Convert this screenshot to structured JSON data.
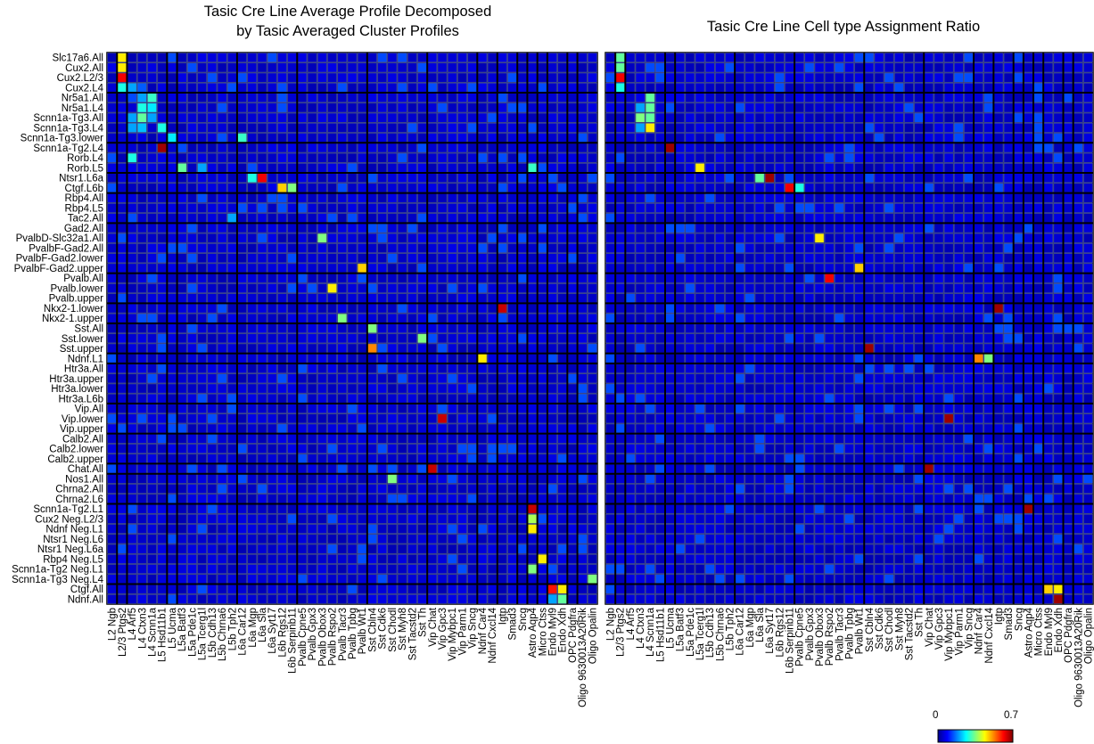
{
  "chart_data": [
    {
      "type": "heatmap",
      "title": "Tasic Cre Line Average Profile Decomposed",
      "subtitle": "by Tasic Averaged Cluster Profiles",
      "rows": [
        "Slc17a6.All",
        "Cux2.All",
        "Cux2.L2/3",
        "Cux2.L4",
        "Nr5a1.All",
        "Nr5a1.L4",
        "Scnn1a-Tg3.All",
        "Scnn1a-Tg3.L4",
        "Scnn1a-Tg3.lower",
        "Scnn1a-Tg2.L4",
        "Rorb.L4",
        "Rorb.L5",
        "Ntsr1.L6a",
        "Ctgf.L6b",
        "Rbp4.All",
        "Rbp4.L5",
        "Tac2.All",
        "Gad2.All",
        "PvalbD-Slc32a1.All",
        "PvalbF-Gad2.All",
        "PvalbF-Gad2.lower",
        "PvalbF-Gad2.upper",
        "Pvalb.All",
        "Pvalb.lower",
        "Pvalb.upper",
        "Nkx2-1.lower",
        "Nkx2-1.upper",
        "Sst.All",
        "Sst.lower",
        "Sst.upper",
        "Ndnf.L1",
        "Htr3a.All",
        "Htr3a.upper",
        "Htr3a.lower",
        "Htr3a.L6b",
        "Vip.All",
        "Vip.lower",
        "Vip.upper",
        "Calb2.All",
        "Calb2.lower",
        "Calb2.upper",
        "Chat.All",
        "Nos1.All",
        "Chrna2.All",
        "Chrna2.L6",
        "Scnn1a-Tg2.L1",
        "Cux2 Neg.L2/3",
        "Ndnf Neg.L1",
        "Ntsr1 Neg.L6",
        "Ntsr1 Neg.L6a",
        "Rbp4 Neg.L5",
        "Scnn1a-Tg2 Neg.L1",
        "Scnn1a-Tg3 Neg.L4",
        "Ctgf.All",
        "Ndnf.All"
      ],
      "columns": [
        "L2 Ngb",
        "L2/3 Ptgs2",
        "L4 Arf5",
        "L4 Ctxn3",
        "L4 Scnn1a",
        "L5 Hsd11b1",
        "L5 Ucma",
        "L5a Batf3",
        "L5a Pde1c",
        "L5a Tcerg1l",
        "L5b Cdh13",
        "L5b Chrna6",
        "L5b Tph2",
        "L6a Car12",
        "L6a Mgp",
        "L6a Sla",
        "L6a Syt17",
        "L6b Rgs12",
        "L6b Serpinb11",
        "Pvalb Cpne5",
        "Pvalb Gpx3",
        "Pvalb Obox3",
        "Pvalb Rspo2",
        "Pvalb Tacr3",
        "Pvalb Tpbg",
        "Pvalb Wt1",
        "Sst Cbln4",
        "Sst Cdk6",
        "Sst Chodl",
        "Sst Myh8",
        "Sst Tacstd2",
        "Sst Th",
        "Vip Chat",
        "Vip Gpc3",
        "Vip Mybpc1",
        "Vip Parm1",
        "Vip Sncg",
        "Ndnf Car4",
        "Ndnf Cxcl14",
        "Igtp",
        "Smad3",
        "Sncg",
        "Astro Aqp4",
        "Micro Ctss",
        "Endo Myl9",
        "Endo Xdh",
        "OPC Pdgfra",
        "Oligo 9630013A20Rik",
        "Oligo Opalin"
      ],
      "value_range": [
        0,
        0.7
      ],
      "colormap": "jet",
      "hot_cells": [
        {
          "row": "Slc17a6.All",
          "column": "L2/3 Ptgs2",
          "value": 0.45
        },
        {
          "row": "Cux2.All",
          "column": "L2/3 Ptgs2",
          "value": 0.45
        },
        {
          "row": "Cux2.L2/3",
          "column": "L2/3 Ptgs2",
          "value": 0.62
        },
        {
          "row": "Cux2.L4",
          "column": "L2/3 Ptgs2",
          "value": 0.28
        },
        {
          "row": "Cux2.L4",
          "column": "L4 Arf5",
          "value": 0.2
        },
        {
          "row": "Cux2.L4",
          "column": "L4 Ctxn3",
          "value": 0.15
        },
        {
          "row": "Nr5a1.All",
          "column": "L4 Ctxn3",
          "value": 0.2
        },
        {
          "row": "Nr5a1.All",
          "column": "L4 Scnn1a",
          "value": 0.3
        },
        {
          "row": "Nr5a1.L4",
          "column": "L4 Ctxn3",
          "value": 0.28
        },
        {
          "row": "Nr5a1.L4",
          "column": "L4 Scnn1a",
          "value": 0.25
        },
        {
          "row": "Scnn1a-Tg3.All",
          "column": "L4 Arf5",
          "value": 0.2
        },
        {
          "row": "Scnn1a-Tg3.All",
          "column": "L4 Ctxn3",
          "value": 0.33
        },
        {
          "row": "Scnn1a-Tg3.All",
          "column": "L4 Scnn1a",
          "value": 0.2
        },
        {
          "row": "Scnn1a-Tg3.L4",
          "column": "L4 Arf5",
          "value": 0.2
        },
        {
          "row": "Scnn1a-Tg3.L4",
          "column": "L4 Ctxn3",
          "value": 0.22
        },
        {
          "row": "Scnn1a-Tg3.L4",
          "column": "L5 Hsd11b1",
          "value": 0.28
        },
        {
          "row": "Scnn1a-Tg3.lower",
          "column": "L5 Ucma",
          "value": 0.25
        },
        {
          "row": "Scnn1a-Tg3.lower",
          "column": "L6a Car12",
          "value": 0.3
        },
        {
          "row": "Scnn1a-Tg2.L4",
          "column": "L5 Hsd11b1",
          "value": 0.68
        },
        {
          "row": "Rorb.L4",
          "column": "L4 Arf5",
          "value": 0.28
        },
        {
          "row": "Rorb.L5",
          "column": "L5a Batf3",
          "value": 0.33
        },
        {
          "row": "Rorb.L5",
          "column": "L5a Tcerg1l",
          "value": 0.2
        },
        {
          "row": "Rorb.L5",
          "column": "Astro Aqp4",
          "value": 0.3
        },
        {
          "row": "Ntsr1.L6a",
          "column": "L6a Mgp",
          "value": 0.28
        },
        {
          "row": "Ntsr1.L6a",
          "column": "L6a Sla",
          "value": 0.62
        },
        {
          "row": "Ctgf.L6b",
          "column": "L6b Rgs12",
          "value": 0.47
        },
        {
          "row": "Ctgf.L6b",
          "column": "L6b Serpinb11",
          "value": 0.35
        },
        {
          "row": "Tac2.All",
          "column": "L5b Tph2",
          "value": 0.2
        },
        {
          "row": "PvalbD-Slc32a1.All",
          "column": "Pvalb Obox3",
          "value": 0.35
        },
        {
          "row": "PvalbF-Gad2.upper",
          "column": "Pvalb Wt1",
          "value": 0.47
        },
        {
          "row": "Pvalb.lower",
          "column": "Pvalb Rspo2",
          "value": 0.45
        },
        {
          "row": "Nkx2-1.lower",
          "column": "Igtp",
          "value": 0.65
        },
        {
          "row": "Nkx2-1.upper",
          "column": "Pvalb Tacr3",
          "value": 0.35
        },
        {
          "row": "Sst.All",
          "column": "Sst Cbln4",
          "value": 0.35
        },
        {
          "row": "Sst.lower",
          "column": "Sst Th",
          "value": 0.35
        },
        {
          "row": "Sst.upper",
          "column": "Sst Cbln4",
          "value": 0.52
        },
        {
          "row": "Ndnf.L1",
          "column": "Ndnf Car4",
          "value": 0.45
        },
        {
          "row": "Vip.lower",
          "column": "Vip Gpc3",
          "value": 0.65
        },
        {
          "row": "Chat.All",
          "column": "Vip Chat",
          "value": 0.65
        },
        {
          "row": "Nos1.All",
          "column": "Sst Chodl",
          "value": 0.35
        },
        {
          "row": "Scnn1a-Tg2.L1",
          "column": "Astro Aqp4",
          "value": 0.65
        },
        {
          "row": "Cux2 Neg.L2/3",
          "column": "Astro Aqp4",
          "value": 0.38
        },
        {
          "row": "Ndnf Neg.L1",
          "column": "Astro Aqp4",
          "value": 0.45
        },
        {
          "row": "Rbp4 Neg.L5",
          "column": "Micro Ctss",
          "value": 0.45
        },
        {
          "row": "Scnn1a-Tg2 Neg.L1",
          "column": "Astro Aqp4",
          "value": 0.35
        },
        {
          "row": "Scnn1a-Tg3 Neg.L4",
          "column": "Oligo Opalin",
          "value": 0.35
        },
        {
          "row": "Ctgf.All",
          "column": "Endo Myl9",
          "value": 0.6
        },
        {
          "row": "Ctgf.All",
          "column": "Endo Xdh",
          "value": 0.45
        },
        {
          "row": "Ndnf.All",
          "column": "Endo Myl9",
          "value": 0.2
        },
        {
          "row": "Ndnf.All",
          "column": "Endo Xdh",
          "value": 0.33
        }
      ]
    },
    {
      "type": "heatmap",
      "title": "Tasic Cre Line Cell type Assignment Ratio",
      "rows": "same as first heatmap",
      "columns": [
        "L2 Ngb",
        "L2/3 Ptgs2",
        "L4 Arf5",
        "L4 Ctxn3",
        "L4 Scnn1a",
        "L5 Hsd11b1",
        "L5 Ucma",
        "L5a Batf3",
        "L5a Pde1c",
        "L5a Tcerg1l",
        "L5b Cdh13",
        "L5b Chrna6",
        "L5b Tph2",
        "L6a Car12",
        "L6a Mgp",
        "L6a Sla",
        "L6a Syt17",
        "L6b Rgs12",
        "L6b Serpinb11",
        "Pvalb Cpne5",
        "Pvalb Gpx3",
        "Pvalb Obox3",
        "Pvalb Rspo2",
        "Pvalb Tacr3",
        "Pvalb Tpbg",
        "Pvalb Wt1",
        "Sst Cbln4",
        "Sst Cdk6",
        "Sst Chodl",
        "Sst Myh8",
        "Sst Tacstd2",
        "Sst Th",
        "Vip Chat",
        "Vip Gpc3",
        "Vip Mybpc1",
        "Vip Parm1",
        "Vip Sncg",
        "Ndnf Car4",
        "Ndnf Cxcl14",
        "Igtp",
        "Smad3",
        "Sncg",
        "Astro Aqp4",
        "Micro Ctss",
        "Endo Myl9",
        "Endo Xdh",
        "OPC Pdgfra",
        "Oligo 9630013A20Rik",
        "Oligo Opalin"
      ],
      "value_range": [
        0,
        0.7
      ],
      "colormap": "jet",
      "hot_cells": [
        {
          "row": "Slc17a6.All",
          "column": "L2/3 Ptgs2",
          "value": 0.33
        },
        {
          "row": "Cux2.All",
          "column": "L2/3 Ptgs2",
          "value": 0.33
        },
        {
          "row": "Cux2.L2/3",
          "column": "L2/3 Ptgs2",
          "value": 0.62
        },
        {
          "row": "Cux2.L4",
          "column": "L2/3 Ptgs2",
          "value": 0.28
        },
        {
          "row": "Nr5a1.All",
          "column": "L4 Scnn1a",
          "value": 0.33
        },
        {
          "row": "Nr5a1.L4",
          "column": "L4 Ctxn3",
          "value": 0.2
        },
        {
          "row": "Nr5a1.L4",
          "column": "L4 Scnn1a",
          "value": 0.33
        },
        {
          "row": "Scnn1a-Tg3.All",
          "column": "L4 Ctxn3",
          "value": 0.35
        },
        {
          "row": "Scnn1a-Tg3.All",
          "column": "L4 Scnn1a",
          "value": 0.33
        },
        {
          "row": "Scnn1a-Tg3.L4",
          "column": "L4 Ctxn3",
          "value": 0.2
        },
        {
          "row": "Scnn1a-Tg3.L4",
          "column": "L4 Scnn1a",
          "value": 0.45
        },
        {
          "row": "Scnn1a-Tg2.L4",
          "column": "L5 Ucma",
          "value": 0.68
        },
        {
          "row": "Rorb.L5",
          "column": "L5a Tcerg1l",
          "value": 0.45
        },
        {
          "row": "Ntsr1.L6a",
          "column": "L6a Sla",
          "value": 0.33
        },
        {
          "row": "Ntsr1.L6a",
          "column": "L6a Syt17",
          "value": 0.68
        },
        {
          "row": "Ctgf.L6b",
          "column": "L6b Serpinb11",
          "value": 0.62
        },
        {
          "row": "Ctgf.L6b",
          "column": "Pvalb Cpne5",
          "value": 0.28
        },
        {
          "row": "PvalbD-Slc32a1.All",
          "column": "Pvalb Obox3",
          "value": 0.45
        },
        {
          "row": "PvalbF-Gad2.upper",
          "column": "Pvalb Wt1",
          "value": 0.47
        },
        {
          "row": "Pvalb.All",
          "column": "Pvalb Rspo2",
          "value": 0.62
        },
        {
          "row": "Nkx2-1.lower",
          "column": "Igtp",
          "value": 0.68
        },
        {
          "row": "Sst.upper",
          "column": "Sst Cbln4",
          "value": 0.68
        },
        {
          "row": "Ndnf.L1",
          "column": "Ndnf Car4",
          "value": 0.52
        },
        {
          "row": "Ndnf.L1",
          "column": "Ndnf Cxcl14",
          "value": 0.35
        },
        {
          "row": "Vip.lower",
          "column": "Vip Mybpc1",
          "value": 0.68
        },
        {
          "row": "Chat.All",
          "column": "Vip Chat",
          "value": 0.68
        },
        {
          "row": "Scnn1a-Tg2.L1",
          "column": "Astro Aqp4",
          "value": 0.68
        },
        {
          "row": "Ctgf.All",
          "column": "Endo Myl9",
          "value": 0.47
        },
        {
          "row": "Ctgf.All",
          "column": "Endo Xdh",
          "value": 0.45
        },
        {
          "row": "Ndnf.All",
          "column": "Endo Xdh",
          "value": 0.68
        }
      ]
    }
  ],
  "colorbar": {
    "min_label": "0",
    "max_label": "0.7",
    "colormap": "jet"
  }
}
